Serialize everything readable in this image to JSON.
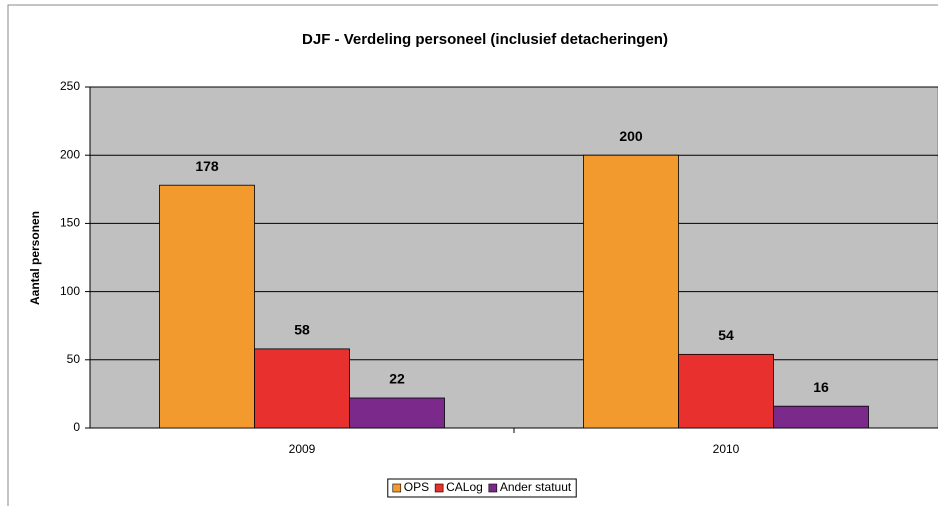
{
  "chart_data": {
    "type": "bar",
    "title": "DJF - Verdeling personeel (inclusief detacheringen)",
    "y_label": "Aantal personen",
    "categories": [
      "2009",
      "2010"
    ],
    "series": [
      {
        "name": "OPS",
        "color": "#f39a2e",
        "values": [
          178,
          200
        ]
      },
      {
        "name": "CALog",
        "color": "#e8302e",
        "values": [
          58,
          54
        ]
      },
      {
        "name": "Ander statuut",
        "color": "#7b2a8c",
        "values": [
          22,
          16
        ]
      }
    ],
    "ylim": [
      0,
      250
    ],
    "yticks": [
      0,
      50,
      100,
      150,
      200,
      250
    ],
    "grid": true,
    "legend": "bottom"
  }
}
